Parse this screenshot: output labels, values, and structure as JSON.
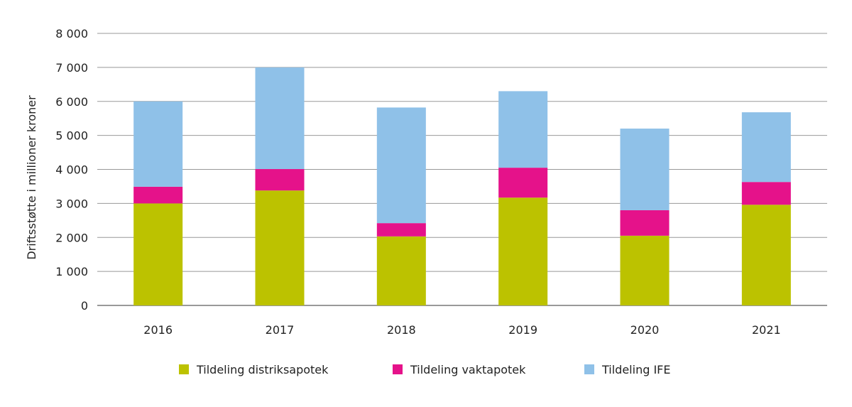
{
  "chart_data": {
    "type": "bar",
    "stacked": true,
    "title": "",
    "xlabel": "",
    "ylabel": "Driftsstøtte i millioner kroner",
    "ylim": [
      0,
      8000
    ],
    "yticks": [
      0,
      1000,
      2000,
      3000,
      4000,
      5000,
      6000,
      7000,
      8000
    ],
    "ytick_labels": [
      "0",
      "1 000",
      "2 000",
      "3 000",
      "4 000",
      "5 000",
      "6 000",
      "7 000",
      "8 000"
    ],
    "grid": true,
    "legend_position": "bottom",
    "categories": [
      "2016",
      "2017",
      "2018",
      "2019",
      "2020",
      "2021"
    ],
    "series": [
      {
        "name": "Tildeling distriksapotek",
        "color": "#bcc200",
        "values": [
          3000,
          3380,
          2030,
          3170,
          2050,
          2960
        ]
      },
      {
        "name": "Tildeling vaktapotek",
        "color": "#e5128a",
        "values": [
          490,
          630,
          390,
          880,
          750,
          670
        ]
      },
      {
        "name": "Tildeling IFE",
        "color": "#8fc1e8",
        "values": [
          2510,
          2990,
          3400,
          2250,
          2400,
          2050
        ]
      }
    ]
  }
}
